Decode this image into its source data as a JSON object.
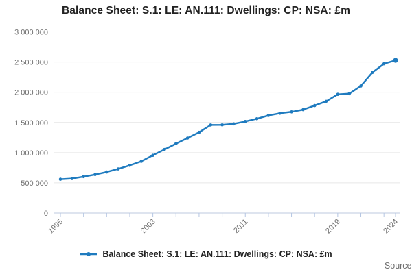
{
  "title": "Balance Sheet: S.1: LE: AN.111: Dwellings: CP: NSA: £m",
  "legend": {
    "label": "Balance Sheet: S.1: LE: AN.111: Dwellings: CP: NSA: £m"
  },
  "source_label": "Source:",
  "colors": {
    "line": "#1f7bbf",
    "grid": "#e6e6e6",
    "axis": "#bcc9df",
    "tick": "#b5c6e2",
    "muted_text": "#6f6f6f",
    "title_text": "#222222"
  },
  "chart_data": {
    "type": "line",
    "title": "Balance Sheet: S.1: LE: AN.111: Dwellings: CP: NSA: £m",
    "xlabel": "",
    "ylabel": "",
    "ylim": [
      0,
      3000000
    ],
    "grid": "horizontal",
    "legend_position": "bottom",
    "x": [
      1995,
      1996,
      1997,
      1998,
      1999,
      2000,
      2001,
      2002,
      2003,
      2004,
      2005,
      2006,
      2007,
      2008,
      2009,
      2010,
      2011,
      2012,
      2013,
      2014,
      2015,
      2016,
      2017,
      2018,
      2019,
      2020,
      2021,
      2022,
      2023,
      2024
    ],
    "series": [
      {
        "name": "Balance Sheet: S.1: LE: AN.111: Dwellings: CP: NSA: £m",
        "values": [
          560000,
          572000,
          603000,
          637000,
          679000,
          730000,
          790000,
          856000,
          956000,
          1052000,
          1148000,
          1242000,
          1336000,
          1459000,
          1460000,
          1477000,
          1517000,
          1562000,
          1616000,
          1652000,
          1675000,
          1712000,
          1780000,
          1850000,
          1966000,
          1976000,
          2104000,
          2327000,
          2471000,
          2528000
        ]
      }
    ],
    "y_ticks": [
      {
        "value": 0,
        "label": "0"
      },
      {
        "value": 500000,
        "label": "500 000"
      },
      {
        "value": 1000000,
        "label": "1 000 000"
      },
      {
        "value": 1500000,
        "label": "1 500 000"
      },
      {
        "value": 2000000,
        "label": "2 000 000"
      },
      {
        "value": 2500000,
        "label": "2 500 000"
      },
      {
        "value": 3000000,
        "label": "3 000 000"
      }
    ],
    "x_tick_years": [
      1995,
      1997,
      1999,
      2001,
      2003,
      2005,
      2007,
      2009,
      2011,
      2013,
      2015,
      2017,
      2019,
      2021,
      2023,
      2024
    ],
    "x_labeled_years": [
      1995,
      2003,
      2011,
      2019,
      2024
    ]
  }
}
